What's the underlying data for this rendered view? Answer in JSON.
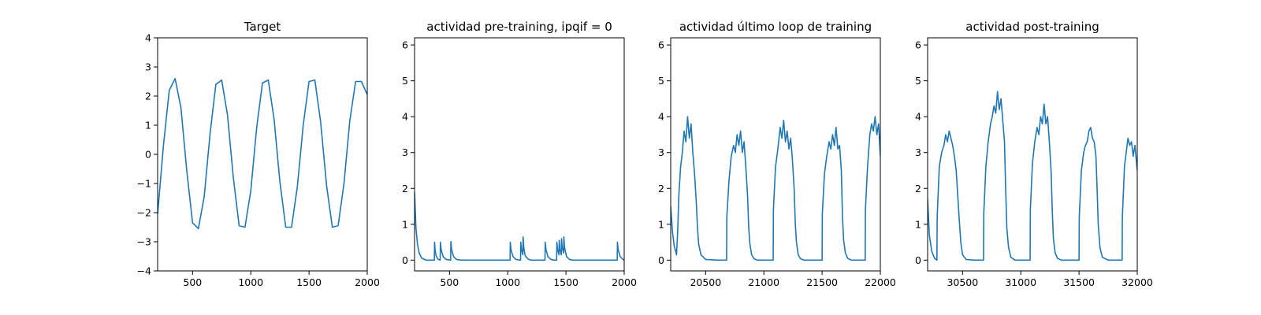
{
  "colors": {
    "series": "#1f77b4"
  },
  "chart_data": [
    {
      "type": "line",
      "title": "Target",
      "xlim": [
        200,
        2000
      ],
      "ylim": [
        -4,
        4
      ],
      "xticks": [
        500,
        1000,
        1500,
        2000
      ],
      "yticks": [
        -4,
        -3,
        -2,
        -1,
        0,
        1,
        2,
        3,
        4
      ],
      "x": [
        200,
        250,
        300,
        350,
        400,
        450,
        500,
        550,
        600,
        650,
        700,
        750,
        800,
        850,
        900,
        950,
        1000,
        1050,
        1100,
        1150,
        1200,
        1250,
        1300,
        1350,
        1400,
        1450,
        1500,
        1550,
        1600,
        1650,
        1700,
        1750,
        1800,
        1850,
        1900,
        1950,
        2000
      ],
      "y": [
        -2.05,
        0.31,
        2.2,
        2.6,
        1.6,
        -0.55,
        -2.35,
        -2.55,
        -1.45,
        0.7,
        2.4,
        2.55,
        1.35,
        -0.8,
        -2.45,
        -2.5,
        -1.25,
        0.9,
        2.45,
        2.55,
        1.2,
        -0.95,
        -2.5,
        -2.5,
        -1.1,
        1.0,
        2.5,
        2.55,
        1.1,
        -1.05,
        -2.5,
        -2.45,
        -1.0,
        1.15,
        2.5,
        2.5,
        2.05
      ]
    },
    {
      "type": "line",
      "title": "actividad pre-training, ipqif = 0",
      "xlim": [
        200,
        2000
      ],
      "ylim": [
        -0.3,
        6.2
      ],
      "xticks": [
        500,
        1000,
        1500,
        2000
      ],
      "yticks": [
        0,
        1,
        2,
        3,
        4,
        5,
        6
      ],
      "x": [
        200,
        212,
        225,
        240,
        260,
        300,
        370,
        372,
        376,
        385,
        400,
        420,
        422,
        428,
        445,
        470,
        510,
        512,
        518,
        535,
        560,
        600,
        700,
        800,
        900,
        1000,
        1020,
        1022,
        1028,
        1045,
        1070,
        1110,
        1112,
        1118,
        1130,
        1132,
        1138,
        1150,
        1175,
        1200,
        1300,
        1320,
        1322,
        1328,
        1345,
        1370,
        1400,
        1420,
        1422,
        1428,
        1440,
        1442,
        1448,
        1460,
        1462,
        1468,
        1480,
        1482,
        1488,
        1505,
        1530,
        1560,
        1650,
        1750,
        1850,
        1930,
        1940,
        1942,
        1948,
        1965,
        1990,
        2000
      ],
      "y": [
        1.9,
        0.9,
        0.45,
        0.2,
        0.06,
        0.0,
        0.0,
        0.5,
        0.3,
        0.12,
        0.03,
        0.0,
        0.5,
        0.3,
        0.1,
        0.02,
        0.0,
        0.52,
        0.3,
        0.1,
        0.02,
        0.0,
        0.0,
        0.0,
        0.0,
        0.0,
        0.0,
        0.5,
        0.3,
        0.1,
        0.02,
        0.0,
        0.5,
        0.3,
        0.15,
        0.65,
        0.35,
        0.12,
        0.03,
        0.0,
        0.0,
        0.0,
        0.5,
        0.3,
        0.1,
        0.02,
        0.0,
        0.0,
        0.5,
        0.3,
        0.15,
        0.55,
        0.3,
        0.15,
        0.6,
        0.35,
        0.2,
        0.65,
        0.35,
        0.1,
        0.02,
        0.0,
        0.0,
        0.0,
        0.0,
        0.0,
        0.0,
        0.5,
        0.3,
        0.1,
        0.02,
        0.0
      ]
    },
    {
      "type": "line",
      "title": "actividad último loop de training",
      "xlim": [
        20200,
        22000
      ],
      "ylim": [
        -0.3,
        6.2
      ],
      "xticks": [
        20500,
        21000,
        21500,
        22000
      ],
      "yticks": [
        0,
        1,
        2,
        3,
        4,
        5,
        6
      ],
      "x": [
        20200,
        20215,
        20230,
        20250,
        20260,
        20270,
        20285,
        20300,
        20315,
        20330,
        20345,
        20360,
        20375,
        20390,
        20405,
        20420,
        20430,
        20440,
        20460,
        20500,
        20600,
        20680,
        20682,
        20700,
        20720,
        20740,
        20755,
        20770,
        20785,
        20800,
        20815,
        20830,
        20845,
        20860,
        20870,
        20880,
        20895,
        20915,
        20945,
        21000,
        21080,
        21082,
        21100,
        21120,
        21140,
        21155,
        21170,
        21185,
        21200,
        21215,
        21230,
        21245,
        21260,
        21270,
        21280,
        21295,
        21315,
        21345,
        21400,
        21500,
        21502,
        21520,
        21540,
        21560,
        21575,
        21590,
        21605,
        21620,
        21635,
        21650,
        21665,
        21675,
        21685,
        21700,
        21720,
        21750,
        21800,
        21870,
        21872,
        21890,
        21910,
        21925,
        21940,
        21955,
        21970,
        21985,
        22000
      ],
      "y": [
        1.5,
        0.8,
        0.4,
        0.15,
        0.8,
        1.8,
        2.6,
        3.0,
        3.6,
        3.3,
        4.0,
        3.4,
        3.8,
        3.0,
        2.4,
        1.6,
        0.9,
        0.45,
        0.15,
        0.02,
        0.0,
        0.0,
        1.2,
        2.2,
        2.9,
        3.2,
        3.0,
        3.5,
        3.2,
        3.6,
        3.0,
        3.3,
        2.6,
        1.8,
        0.9,
        0.45,
        0.15,
        0.04,
        0.0,
        0.0,
        0.0,
        1.4,
        2.6,
        3.1,
        3.7,
        3.4,
        3.9,
        3.3,
        3.6,
        3.1,
        3.4,
        2.8,
        2.0,
        1.0,
        0.5,
        0.15,
        0.04,
        0.0,
        0.0,
        0.0,
        1.3,
        2.4,
        2.9,
        3.3,
        3.1,
        3.5,
        3.2,
        3.7,
        3.1,
        3.2,
        2.5,
        1.2,
        0.55,
        0.2,
        0.05,
        0.0,
        0.0,
        0.0,
        1.4,
        2.6,
        3.5,
        3.8,
        3.6,
        4.0,
        3.5,
        3.8,
        2.9
      ]
    },
    {
      "type": "line",
      "title": "actividad post-training",
      "xlim": [
        30200,
        32000
      ],
      "ylim": [
        -0.3,
        6.2
      ],
      "xticks": [
        30500,
        31000,
        31500,
        32000
      ],
      "yticks": [
        0,
        1,
        2,
        3,
        4,
        5,
        6
      ],
      "x": [
        30200,
        30215,
        30235,
        30260,
        30280,
        30282,
        30300,
        30320,
        30340,
        30355,
        30370,
        30385,
        30400,
        30415,
        30430,
        30445,
        30455,
        30470,
        30485,
        30500,
        30530,
        30600,
        30680,
        30682,
        30700,
        30720,
        30740,
        30755,
        30770,
        30785,
        30800,
        30815,
        30830,
        30845,
        30860,
        30870,
        30880,
        30895,
        30915,
        30950,
        31000,
        31080,
        31082,
        31100,
        31120,
        31140,
        31155,
        31170,
        31185,
        31200,
        31215,
        31230,
        31245,
        31260,
        31270,
        31280,
        31295,
        31315,
        31350,
        31400,
        31500,
        31502,
        31520,
        31540,
        31555,
        31570,
        31585,
        31600,
        31615,
        31630,
        31645,
        31655,
        31665,
        31680,
        31700,
        31750,
        31800,
        31870,
        31872,
        31890,
        31905,
        31920,
        31935,
        31950,
        31965,
        31980,
        32000
      ],
      "y": [
        1.7,
        0.7,
        0.25,
        0.05,
        0.0,
        1.2,
        2.6,
        3.0,
        3.2,
        3.5,
        3.3,
        3.6,
        3.4,
        3.2,
        2.9,
        2.5,
        2.0,
        1.2,
        0.5,
        0.15,
        0.02,
        0.0,
        0.0,
        1.3,
        2.6,
        3.3,
        3.8,
        4.0,
        4.3,
        4.1,
        4.7,
        4.2,
        4.5,
        3.9,
        3.3,
        2.0,
        0.9,
        0.35,
        0.08,
        0.0,
        0.0,
        0.0,
        1.4,
        2.7,
        3.3,
        3.7,
        3.5,
        4.0,
        3.8,
        4.35,
        3.8,
        4.0,
        3.3,
        2.5,
        1.4,
        0.6,
        0.2,
        0.05,
        0.0,
        0.0,
        0.0,
        1.2,
        2.5,
        3.0,
        3.2,
        3.3,
        3.6,
        3.7,
        3.4,
        3.3,
        2.9,
        2.0,
        1.0,
        0.35,
        0.08,
        0.0,
        0.0,
        0.0,
        1.2,
        2.6,
        3.0,
        3.4,
        3.2,
        3.3,
        2.9,
        3.2,
        2.5
      ]
    }
  ]
}
